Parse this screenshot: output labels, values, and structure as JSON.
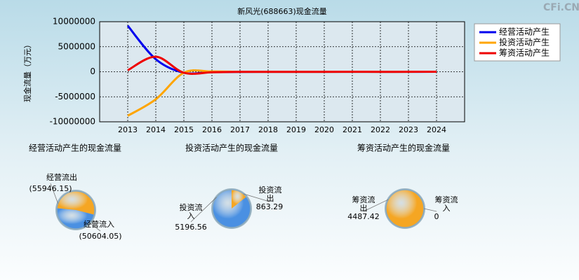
{
  "watermark": "CFi.CN",
  "chart_data": [
    {
      "type": "line",
      "title": "新风光(688663)现金流量",
      "y_label": "现金流量（万元）",
      "x": [
        2013,
        2014,
        2015,
        2016,
        2017,
        2018,
        2019,
        2020,
        2021,
        2022,
        2023,
        2024
      ],
      "xlim": [
        2012,
        2025
      ],
      "xticks": [
        2013,
        2014,
        2015,
        2016,
        2017,
        2018,
        2019,
        2020,
        2021,
        2022,
        2023,
        2024
      ],
      "ylim": [
        -10000000,
        10000000
      ],
      "yticks": [
        -10000000,
        -5000000,
        0,
        5000000,
        10000000
      ],
      "grid": true,
      "legend": "upper right",
      "series": [
        {
          "name": "经营活动产生",
          "color": "#0000ee",
          "values": [
            9200000,
            2500000,
            -200000,
            -50000,
            -30000,
            -20000,
            -20000,
            -15000,
            -10000,
            -20000,
            -15000,
            -5342
          ]
        },
        {
          "name": "投资活动产生",
          "color": "#ffa500",
          "values": [
            -8800000,
            -5500000,
            -200000,
            50000,
            -20000,
            -20000,
            -15000,
            -15000,
            -10000,
            -15000,
            -10000,
            -4333
          ]
        },
        {
          "name": "筹资活动产生",
          "color": "#ee0000",
          "values": [
            300000,
            3000000,
            -200000,
            -100000,
            -20000,
            -15000,
            -15000,
            -10000,
            -5000,
            -10000,
            -8000,
            4487
          ]
        }
      ]
    },
    {
      "type": "pie",
      "title": "经营活动产生的现金流量",
      "categories": [
        "经营流出",
        "经营流入"
      ],
      "values": [
        55946.15,
        50604.05
      ],
      "value_labels": [
        "(55946.15)",
        "(50604.05)"
      ],
      "colors": [
        "#f5a623",
        "#4a90e2"
      ]
    },
    {
      "type": "pie",
      "title": "投资活动产生的现金流量",
      "categories": [
        "投资流出",
        "投资流入"
      ],
      "values": [
        863.29,
        5196.56
      ],
      "value_labels": [
        "863.29",
        "5196.56"
      ],
      "colors": [
        "#f5a623",
        "#4a90e2"
      ]
    },
    {
      "type": "pie",
      "title": "筹资活动产生的现金流量",
      "categories": [
        "筹资流出",
        "筹资流入"
      ],
      "values": [
        4487.42,
        0
      ],
      "value_labels": [
        "4487.42",
        "0"
      ],
      "colors": [
        "#f5a623",
        "#4a90e2"
      ]
    }
  ]
}
